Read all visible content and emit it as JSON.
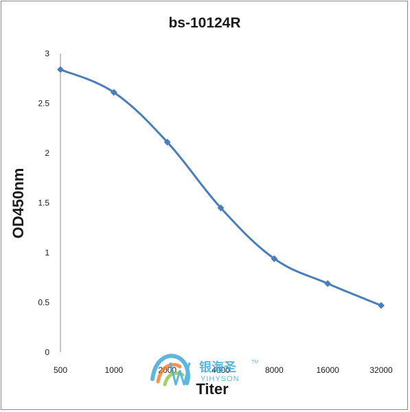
{
  "chart_data": {
    "type": "line",
    "title": "bs-10124R",
    "xlabel": "Titer",
    "ylabel": "OD450nm",
    "categories": [
      "500",
      "1000",
      "2000",
      "4000",
      "8000",
      "16000",
      "32000"
    ],
    "values": [
      2.84,
      2.61,
      2.11,
      1.45,
      0.94,
      0.69,
      0.47
    ],
    "ylim": [
      0,
      3
    ],
    "yticks": [
      "0",
      "0.5",
      "1",
      "1.5",
      "2",
      "2.5",
      "3"
    ],
    "grid": false,
    "legend": "none",
    "line_color": "#4a7ebb",
    "marker": "diamond"
  },
  "watermark": {
    "cn": "银海圣",
    "tm": "TM",
    "en": "YIHYSON",
    "colors": [
      "#37a5d8",
      "#f07b2a",
      "#8cc63f"
    ]
  }
}
